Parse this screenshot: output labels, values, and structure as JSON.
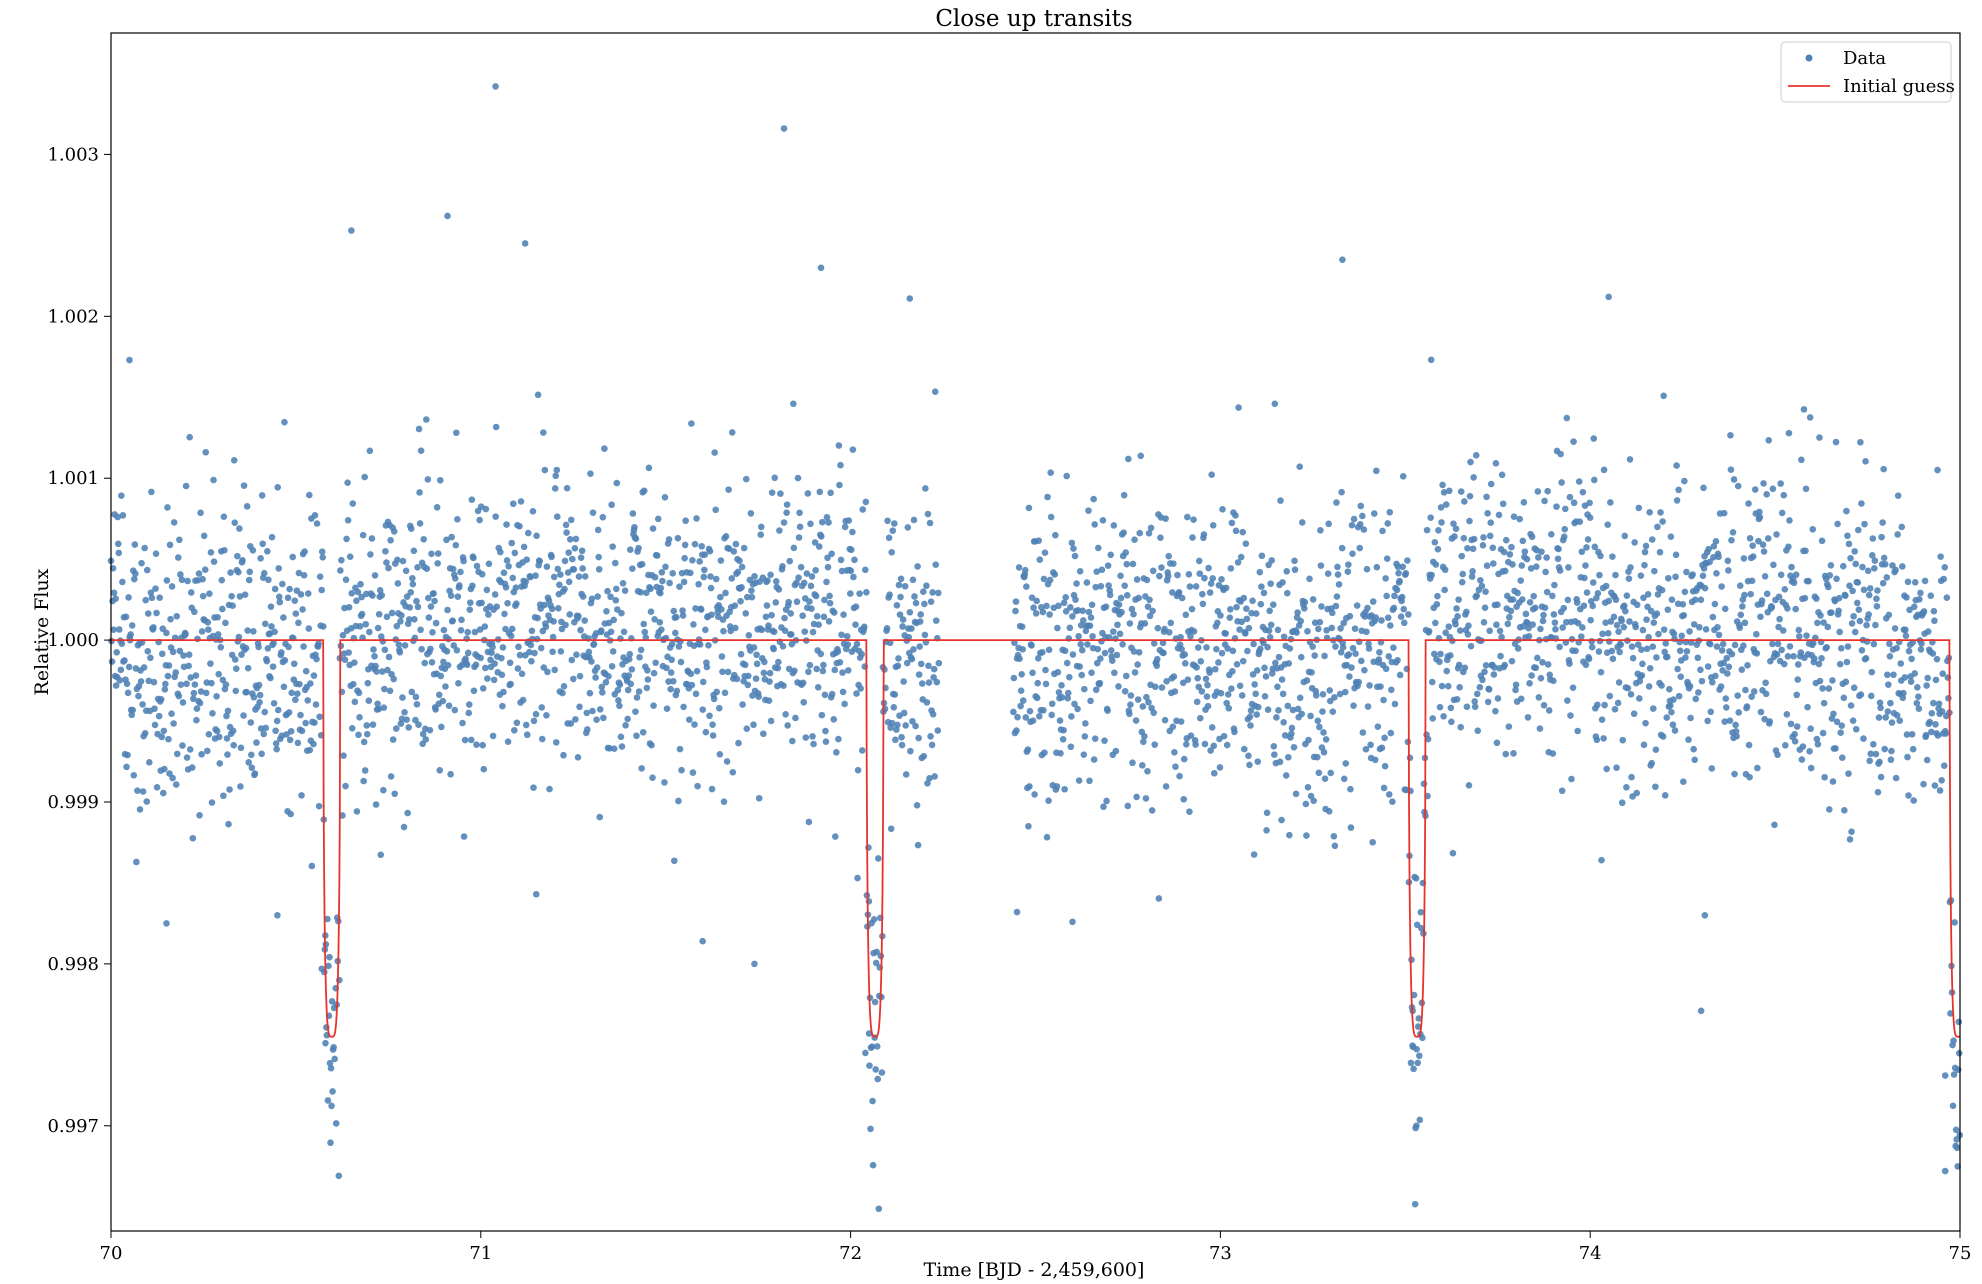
{
  "chart_data": {
    "type": "scatter",
    "title": "Close up transits",
    "xlabel": "Time [BJD - 2,459,600]",
    "ylabel": "Relative Flux",
    "xlim": [
      70,
      75
    ],
    "ylim": [
      0.99635,
      1.00375
    ],
    "x_ticks": [
      70,
      71,
      72,
      73,
      74,
      75
    ],
    "x_tick_labels": [
      "70",
      "71",
      "72",
      "73",
      "74",
      "75"
    ],
    "y_ticks": [
      0.997,
      0.998,
      0.999,
      1.0,
      1.001,
      1.002,
      1.003
    ],
    "y_tick_labels": [
      "0.997",
      "0.998",
      "0.999",
      "1.000",
      "1.001",
      "1.002",
      "1.003"
    ],
    "grid": false,
    "legend": {
      "position": "top-right",
      "entries": [
        "Data",
        "Initial guess"
      ]
    },
    "series": [
      {
        "name": "Data",
        "kind": "scatter",
        "color": "#4f81b5",
        "sample_points": [
          [
            70.58,
            0.99751
          ],
          [
            70.57,
            0.99797
          ],
          [
            71.04,
            1.00342
          ],
          [
            71.82,
            1.00316
          ],
          [
            70.65,
            1.00253
          ],
          [
            70.91,
            1.00262
          ],
          [
            71.12,
            1.00245
          ],
          [
            71.92,
            1.0023
          ],
          [
            72.04,
            0.99745
          ],
          [
            72.05,
            0.99757
          ],
          [
            72.16,
            1.00211
          ],
          [
            73.33,
            1.00235
          ],
          [
            74.05,
            1.00212
          ],
          [
            73.52,
            0.99771
          ],
          [
            73.53,
            0.997
          ],
          [
            74.3,
            0.99771
          ],
          [
            74.96,
            0.99672
          ],
          [
            74.96,
            0.99731
          ],
          [
            70.05,
            1.00173
          ],
          [
            70.15,
            0.99825
          ],
          [
            70.45,
            0.9983
          ],
          [
            71.15,
            0.99843
          ],
          [
            72.45,
            0.99832
          ],
          [
            72.6,
            0.99826
          ],
          [
            74.31,
            0.9983
          ],
          [
            71.6,
            0.99814
          ],
          [
            71.74,
            0.998
          ]
        ]
      },
      {
        "name": "Initial guess",
        "kind": "line",
        "color": "#e8332a",
        "baseline": 1.0,
        "transit_centers": [
          70.597,
          72.066,
          73.532,
          74.995
        ],
        "transit_depth": 0.99755,
        "transit_half_width": 0.023
      }
    ]
  }
}
